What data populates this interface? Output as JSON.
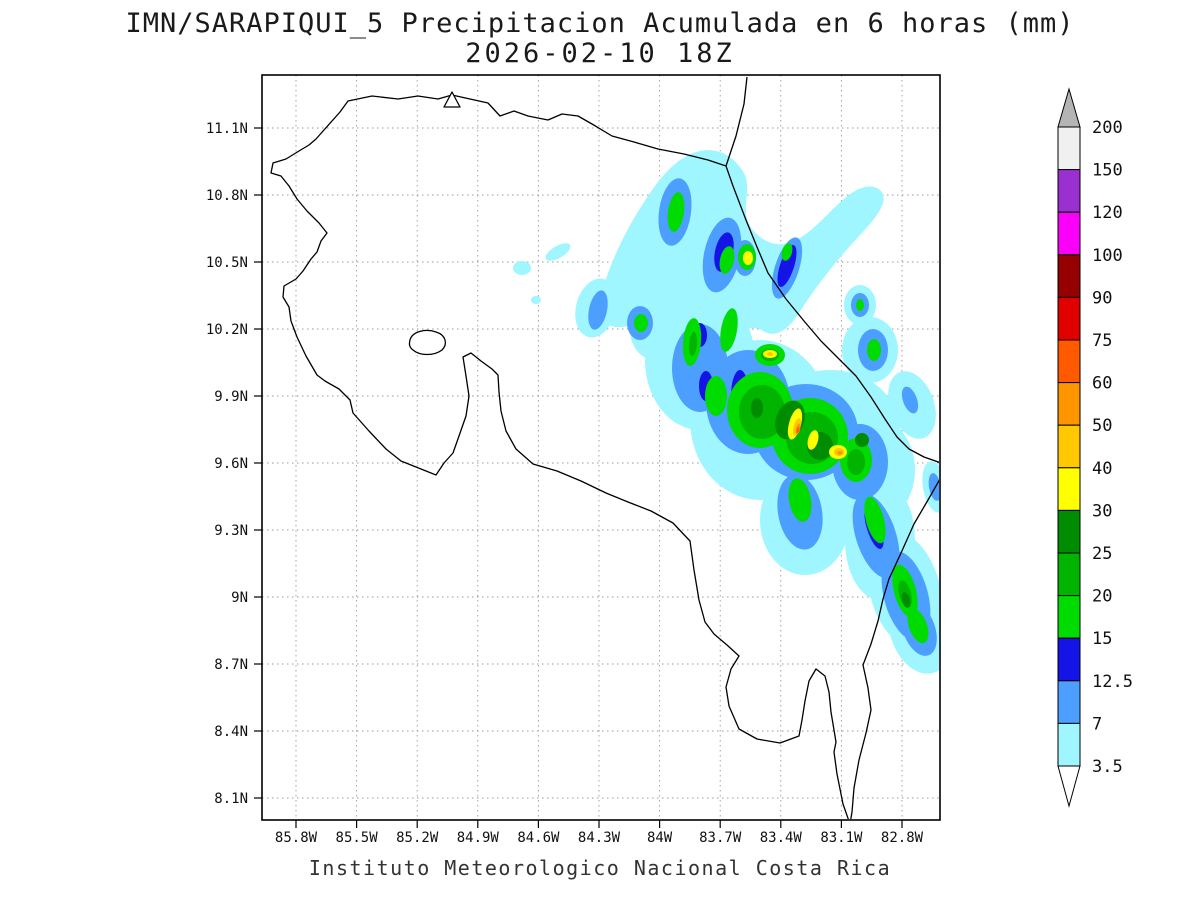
{
  "title": {
    "line1": "IMN/SARAPIQUI_5 Precipitacion Acumulada en 6 horas (mm)",
    "line2": "2026-02-10 18Z"
  },
  "footer": {
    "caption": "Instituto Meteorologico Nacional Costa Rica"
  },
  "chart_data": {
    "type": "heatmap",
    "title": "IMN/SARAPIQUI_5 Precipitacion Acumulada en 6 horas (mm)",
    "subtitle": "2026-02-10 18Z",
    "units": "mm",
    "grid": "dotted",
    "x_ticks": [
      "85.8W",
      "85.5W",
      "85.2W",
      "84.9W",
      "84.6W",
      "84.3W",
      "84W",
      "83.7W",
      "83.4W",
      "83.1W",
      "82.8W"
    ],
    "y_ticks": [
      "11.1N",
      "10.8N",
      "10.5N",
      "10.2N",
      "9.9N",
      "9.6N",
      "9.3N",
      "9N",
      "8.7N",
      "8.4N",
      "8.1N"
    ],
    "colorbar": {
      "position": "right",
      "labels_top_to_bottom": [
        "200",
        "150",
        "120",
        "100",
        "90",
        "75",
        "60",
        "50",
        "40",
        "30",
        "25",
        "20",
        "15",
        "12.5",
        "7",
        "3.5"
      ],
      "colors_top_to_bottom": [
        "#b4b4b4",
        "#f0f0f0",
        "#9b30d0",
        "#fa00fa",
        "#960000",
        "#e00000",
        "#ff5a00",
        "#ff9600",
        "#ffc800",
        "#ffff00",
        "#008c00",
        "#00b400",
        "#00dc00",
        "#1414e6",
        "#4d9fff",
        "#a0f6ff",
        "#ffffff"
      ]
    }
  }
}
